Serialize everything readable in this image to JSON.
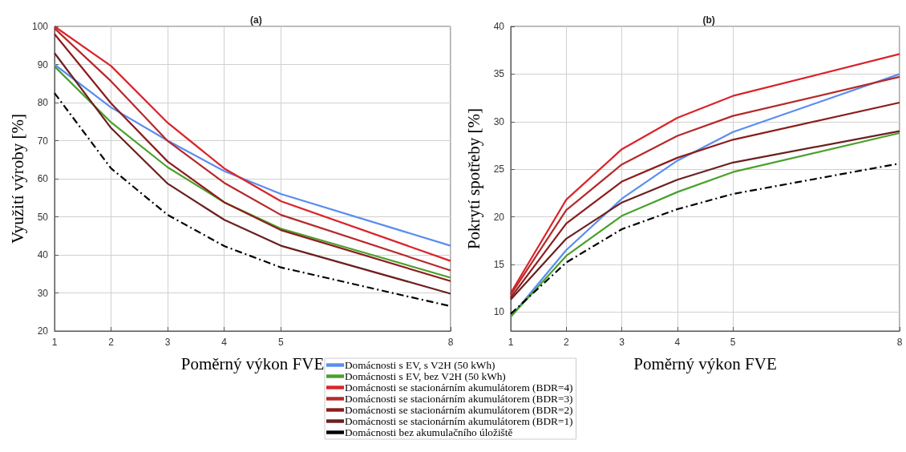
{
  "chart_data": [
    {
      "type": "line",
      "title": "(a)",
      "xlabel": "Poměrný výkon FVE",
      "ylabel": "Využití výroby [%]",
      "x": [
        1,
        2,
        3,
        4,
        5,
        8
      ],
      "xlim": [
        1,
        8
      ],
      "xticks": [
        1,
        2,
        3,
        4,
        5,
        8
      ],
      "ylim": [
        20,
        100
      ],
      "yticks": [
        20,
        30,
        40,
        50,
        60,
        70,
        80,
        90,
        100
      ],
      "grid": true,
      "legend": "bottom",
      "series": [
        {
          "name": "Domácnosti s EV, s V2H (50 kWh)",
          "color": "#5b8def",
          "values": [
            90,
            78.7,
            70,
            62,
            56,
            42.4
          ]
        },
        {
          "name": "Domácnosti s EV, bez V2H (50 kWh)",
          "color": "#4aa02c",
          "values": [
            89.5,
            74.8,
            63,
            53.8,
            46.9,
            34
          ]
        },
        {
          "name": "Domácnosti se stacionárním akumulátorem (BDR=4)",
          "color": "#d9242a",
          "values": [
            100,
            89.6,
            74.7,
            62.7,
            54.1,
            38.4
          ]
        },
        {
          "name": "Domácnosti se stacionárním akumulátorem (BDR=3)",
          "color": "#b52a2a",
          "values": [
            99.5,
            85.6,
            69.9,
            58.9,
            50.5,
            35.9
          ]
        },
        {
          "name": "Domácnosti se stacionárním akumulátorem (BDR=2)",
          "color": "#8c1c1c",
          "values": [
            98,
            79.8,
            64.5,
            53.8,
            46.5,
            33.1
          ]
        },
        {
          "name": "Domácnosti se stacionárním akumulátorem (BDR=1)",
          "color": "#6b1f1f",
          "values": [
            93,
            73.3,
            58.7,
            49.2,
            42.4,
            29.8
          ]
        },
        {
          "name": "Domácnosti bez akumulačního úložiště",
          "color": "#000000",
          "line_style": "dashed",
          "values": [
            82.5,
            62.7,
            50.5,
            42.3,
            36.7,
            26.5
          ]
        }
      ]
    },
    {
      "type": "line",
      "title": "(b)",
      "xlabel": "Poměrný výkon FVE",
      "ylabel": "Pokrytí spotřeby [%]",
      "x": [
        1,
        2,
        3,
        4,
        5,
        8
      ],
      "xlim": [
        1,
        8
      ],
      "xticks": [
        1,
        2,
        3,
        4,
        5,
        8
      ],
      "ylim": [
        8,
        40
      ],
      "yticks": [
        10,
        15,
        20,
        25,
        30,
        35,
        40
      ],
      "grid": true,
      "series": [
        {
          "color": "#5b8def",
          "values": [
            9.5,
            16.5,
            21.9,
            25.9,
            28.9,
            35
          ]
        },
        {
          "color": "#4aa02c",
          "values": [
            9.5,
            15.9,
            20.1,
            22.6,
            24.7,
            28.8
          ]
        },
        {
          "color": "#d9242a",
          "values": [
            12,
            21.8,
            27.1,
            30.4,
            32.7,
            37.1
          ]
        },
        {
          "color": "#b52a2a",
          "values": [
            11.8,
            20.7,
            25.5,
            28.5,
            30.6,
            34.7
          ]
        },
        {
          "color": "#8c1c1c",
          "values": [
            11.5,
            19.3,
            23.7,
            26.2,
            28.1,
            32
          ]
        },
        {
          "color": "#6b1f1f",
          "values": [
            11.3,
            17.7,
            21.5,
            23.9,
            25.7,
            29
          ]
        },
        {
          "color": "#000000",
          "line_style": "dashed",
          "values": [
            9.8,
            15.2,
            18.7,
            20.8,
            22.4,
            25.6
          ]
        }
      ]
    }
  ]
}
